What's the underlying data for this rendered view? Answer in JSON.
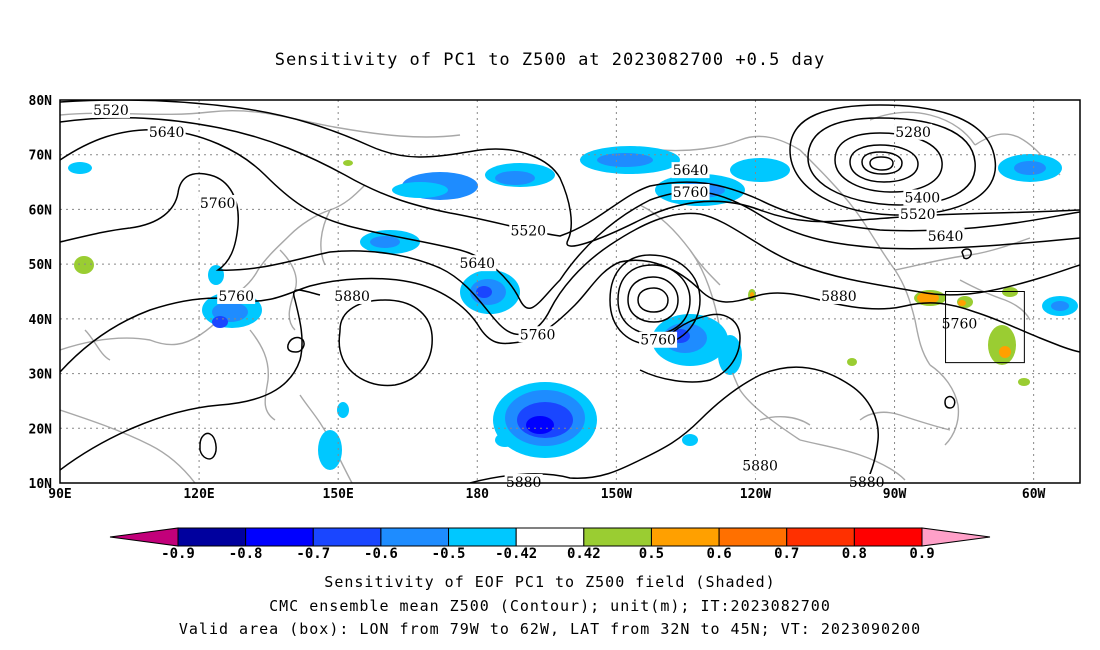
{
  "title": "Sensitivity of PC1 to Z500 at 2023082700 +0.5 day",
  "map": {
    "lon_labels": [
      "90E",
      "120E",
      "150E",
      "180",
      "150W",
      "120W",
      "90W",
      "60W"
    ],
    "lat_labels": [
      "80N",
      "70N",
      "60N",
      "50N",
      "40N",
      "30N",
      "20N",
      "10N"
    ],
    "contour_labels": [
      {
        "text": "5520",
        "lon": 101,
        "lat": 78
      },
      {
        "text": "5640",
        "lon": 113,
        "lat": 74
      },
      {
        "text": "5760",
        "lon": 124,
        "lat": 61
      },
      {
        "text": "5760",
        "lon": 128,
        "lat": 44
      },
      {
        "text": "5880",
        "lon": 153,
        "lat": 44
      },
      {
        "text": "5520",
        "lon": 191,
        "lat": 56
      },
      {
        "text": "5640",
        "lon": 180,
        "lat": 50
      },
      {
        "text": "5760",
        "lon": 193,
        "lat": 37
      },
      {
        "text": "5640",
        "lon": 226,
        "lat": 67
      },
      {
        "text": "5760",
        "lon": 226,
        "lat": 63
      },
      {
        "text": "5760",
        "lon": 219,
        "lat": 36
      },
      {
        "text": "5880",
        "lon": 258,
        "lat": 44
      },
      {
        "text": "5880",
        "lon": 241,
        "lat": 13
      },
      {
        "text": "5880",
        "lon": 190,
        "lat": 10
      },
      {
        "text": "5280",
        "lon": 274,
        "lat": 74
      },
      {
        "text": "5400",
        "lon": 276,
        "lat": 62
      },
      {
        "text": "5520",
        "lon": 275,
        "lat": 59
      },
      {
        "text": "5640",
        "lon": 281,
        "lat": 55
      },
      {
        "text": "5760",
        "lon": 284,
        "lat": 39
      },
      {
        "text": "5880",
        "lon": 264,
        "lat": 10
      }
    ],
    "valid_box": {
      "lon_min": -79,
      "lon_max": -62,
      "lat_min": 32,
      "lat_max": 45
    }
  },
  "colorbar": {
    "levels": [
      "-0.9",
      "-0.8",
      "-0.7",
      "-0.6",
      "-0.5",
      "-0.42",
      "0.42",
      "0.5",
      "0.6",
      "0.7",
      "0.8",
      "0.9"
    ],
    "colors": [
      "#c2007a",
      "#00009e",
      "#0000ff",
      "#1a46ff",
      "#1e8cff",
      "#00c8ff",
      "#ffffff",
      "#9acd32",
      "#ffa000",
      "#ff7000",
      "#ff3000",
      "#ff0000",
      "#ffa0c8"
    ]
  },
  "caption": {
    "line1": "Sensitivity of EOF PC1 to Z500 field (Shaded)",
    "line2": "CMC ensemble mean Z500 (Contour); unit(m); IT:2023082700",
    "line3": "Valid area (box): LON from 79W to 62W, LAT from 32N to 45N; VT: 2023090200"
  }
}
